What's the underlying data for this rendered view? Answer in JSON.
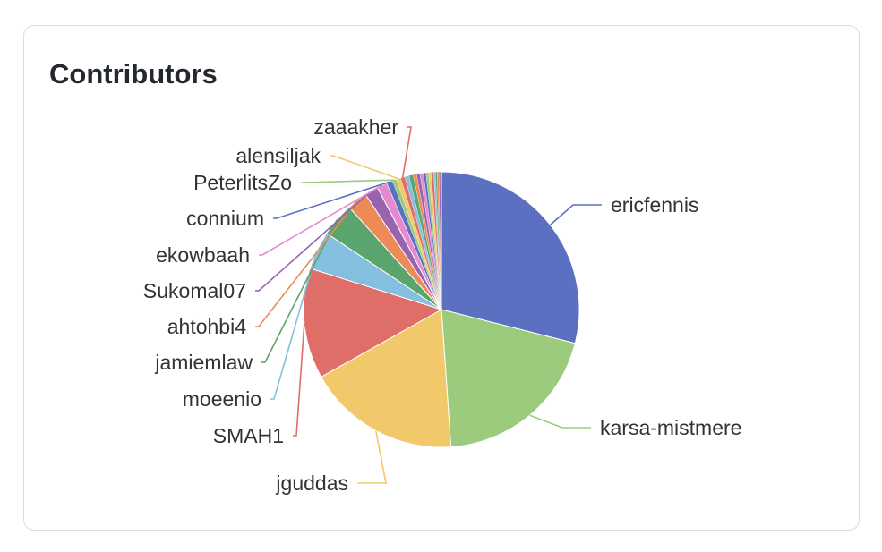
{
  "card": {
    "title": "Contributors"
  },
  "chart_data": {
    "type": "pie",
    "title": "Contributors",
    "slices": [
      {
        "name": "ericfennis",
        "value": 29.0,
        "color": "#5b70c1"
      },
      {
        "name": "karsa-mistmere",
        "value": 20.0,
        "color": "#9dcb7d"
      },
      {
        "name": "jguddas",
        "value": 18.0,
        "color": "#f2c96a"
      },
      {
        "name": "SMAH1",
        "value": 13.0,
        "color": "#e06e68"
      },
      {
        "name": "moeenio",
        "value": 4.5,
        "color": "#84c0dd"
      },
      {
        "name": "jamiemlaw",
        "value": 4.0,
        "color": "#5aa46e"
      },
      {
        "name": "ahtohbi4",
        "value": 2.4,
        "color": "#ec8a58"
      },
      {
        "name": "Sukomal07",
        "value": 1.6,
        "color": "#9a63ae"
      },
      {
        "name": "ekowbaah",
        "value": 1.2,
        "color": "#e68ad0"
      },
      {
        "name": "connium",
        "value": 0.7,
        "color": "#5b70c1"
      },
      {
        "name": "PeterlitsZo",
        "value": 0.5,
        "color": "#9dcb7d"
      },
      {
        "name": "alensiljak",
        "value": 0.5,
        "color": "#f2c96a"
      },
      {
        "name": "zaaakher",
        "value": 0.5,
        "color": "#e06e68"
      },
      {
        "name": "",
        "value": 0.5,
        "color": "#84c0dd"
      },
      {
        "name": "",
        "value": 0.5,
        "color": "#5aa46e"
      },
      {
        "name": "",
        "value": 0.4,
        "color": "#ec8a58"
      },
      {
        "name": "",
        "value": 0.4,
        "color": "#9a63ae"
      },
      {
        "name": "",
        "value": 0.4,
        "color": "#e68ad0"
      },
      {
        "name": "",
        "value": 0.3,
        "color": "#5b70c1"
      },
      {
        "name": "",
        "value": 0.3,
        "color": "#9dcb7d"
      },
      {
        "name": "",
        "value": 0.3,
        "color": "#f2c96a"
      },
      {
        "name": "",
        "value": 0.3,
        "color": "#e06e68"
      },
      {
        "name": "",
        "value": 0.2,
        "color": "#84c0dd"
      },
      {
        "name": "",
        "value": 0.2,
        "color": "#5aa46e"
      },
      {
        "name": "",
        "value": 0.2,
        "color": "#ec8a58"
      },
      {
        "name": "",
        "value": 0.2,
        "color": "#9a63ae"
      },
      {
        "name": "",
        "value": 0.1,
        "color": "#e68ad0"
      }
    ]
  }
}
